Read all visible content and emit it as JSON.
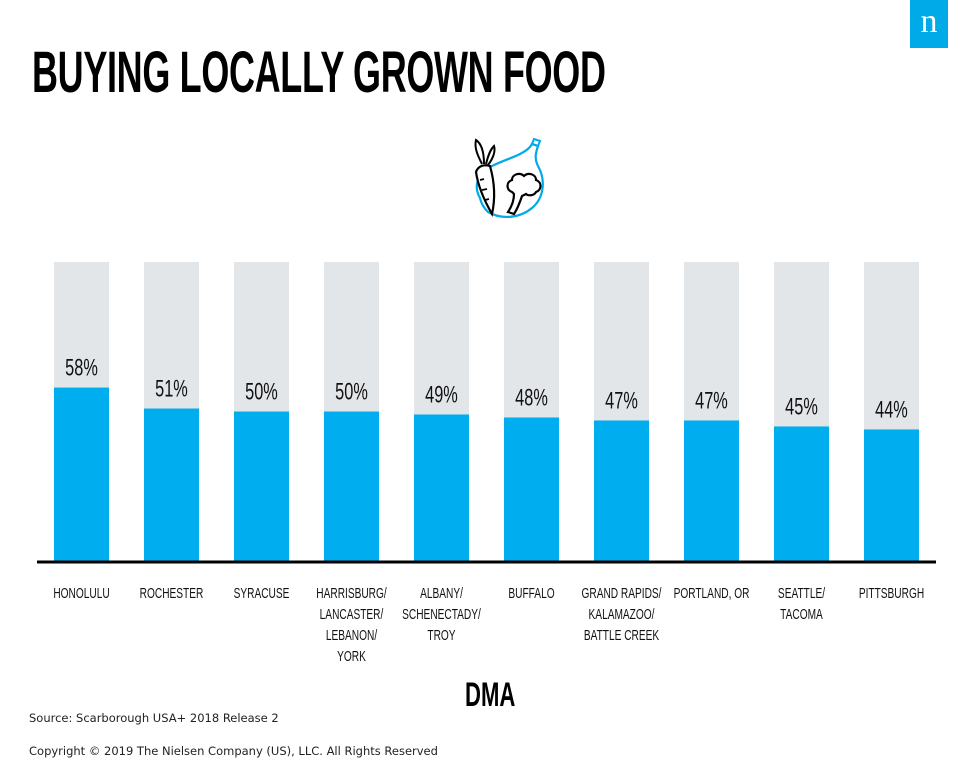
{
  "header": {
    "title": "BUYING LOCALLY GROWN FOOD",
    "logo_letter": "n",
    "icon": "vegetables-icon"
  },
  "colors": {
    "bar": "#00aeef",
    "track": "#e3e6e9",
    "axis": "#000000",
    "logo_bg": "#00a9e8"
  },
  "chart_data": {
    "type": "bar",
    "title": "BUYING LOCALLY GROWN FOOD",
    "xlabel": "DMA",
    "ylabel": "",
    "ylim": [
      0,
      100
    ],
    "grid": false,
    "categories": [
      [
        "HONOLULU"
      ],
      [
        "ROCHESTER"
      ],
      [
        "SYRACUSE"
      ],
      [
        "HARRISBURG/",
        "LANCASTER/",
        "LEBANON/",
        "YORK"
      ],
      [
        "ALBANY/",
        "SCHENECTADY/",
        "TROY"
      ],
      [
        "BUFFALO"
      ],
      [
        "GRAND RAPIDS/",
        "KALAMAZOO/",
        "BATTLE CREEK"
      ],
      [
        "PORTLAND, OR"
      ],
      [
        "SEATTLE/",
        "TACOMA"
      ],
      [
        "PITTSBURGH"
      ]
    ],
    "values": [
      58,
      51,
      50,
      50,
      49,
      48,
      47,
      47,
      45,
      44
    ],
    "value_labels": [
      "58%",
      "51%",
      "50%",
      "50%",
      "49%",
      "48%",
      "47%",
      "47%",
      "45%",
      "44%"
    ]
  },
  "footer": {
    "source": "Source: Scarborough USA+ 2018 Release 2",
    "copyright": "Copyright © 2019 The Nielsen Company (US), LLC. All Rights Reserved"
  }
}
